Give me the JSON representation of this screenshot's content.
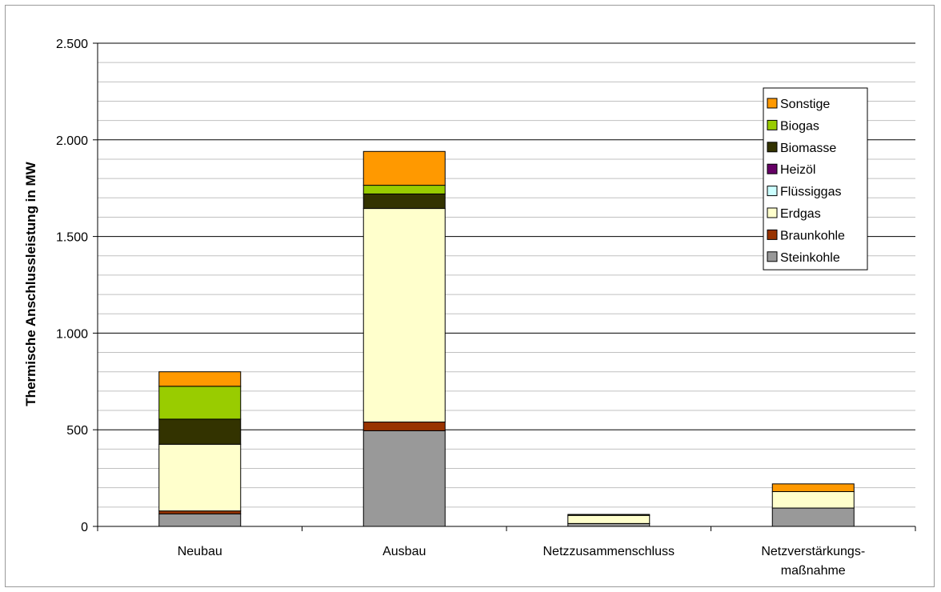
{
  "chart_data": {
    "type": "bar",
    "stacked": true,
    "title": "",
    "xlabel": "",
    "ylabel": "Thermische Anschlussleistung in MW",
    "ylim": [
      0,
      2500
    ],
    "yticks": [
      0,
      500,
      1000,
      1500,
      2000,
      2500
    ],
    "ytick_labels": [
      "0",
      "500",
      "1.000",
      "1.500",
      "2.000",
      "2.500"
    ],
    "minor_grid_step": 100,
    "grid": true,
    "legend_position": "top-right",
    "categories": [
      [
        "Neubau"
      ],
      [
        "Ausbau"
      ],
      [
        "Netzzusammenschluss"
      ],
      [
        "Netzverstärkungs-",
        "maßnahme"
      ]
    ],
    "series": [
      {
        "name": "Steinkohle",
        "color": "#999999",
        "values": [
          65,
          495,
          15,
          95
        ]
      },
      {
        "name": "Braunkohle",
        "color": "#993300",
        "values": [
          15,
          45,
          0,
          0
        ]
      },
      {
        "name": "Erdgas",
        "color": "#ffffcc",
        "values": [
          345,
          1105,
          42,
          85
        ]
      },
      {
        "name": "Flüssiggas",
        "color": "#ccffff",
        "values": [
          0,
          0,
          0,
          0
        ]
      },
      {
        "name": "Heizöl",
        "color": "#660066",
        "values": [
          0,
          0,
          0,
          0
        ]
      },
      {
        "name": "Biomasse",
        "color": "#333300",
        "values": [
          130,
          75,
          5,
          0
        ]
      },
      {
        "name": "Biogas",
        "color": "#99cc00",
        "values": [
          170,
          45,
          0,
          0
        ]
      },
      {
        "name": "Sonstige",
        "color": "#ff9900",
        "values": [
          75,
          175,
          0,
          40
        ]
      }
    ]
  }
}
